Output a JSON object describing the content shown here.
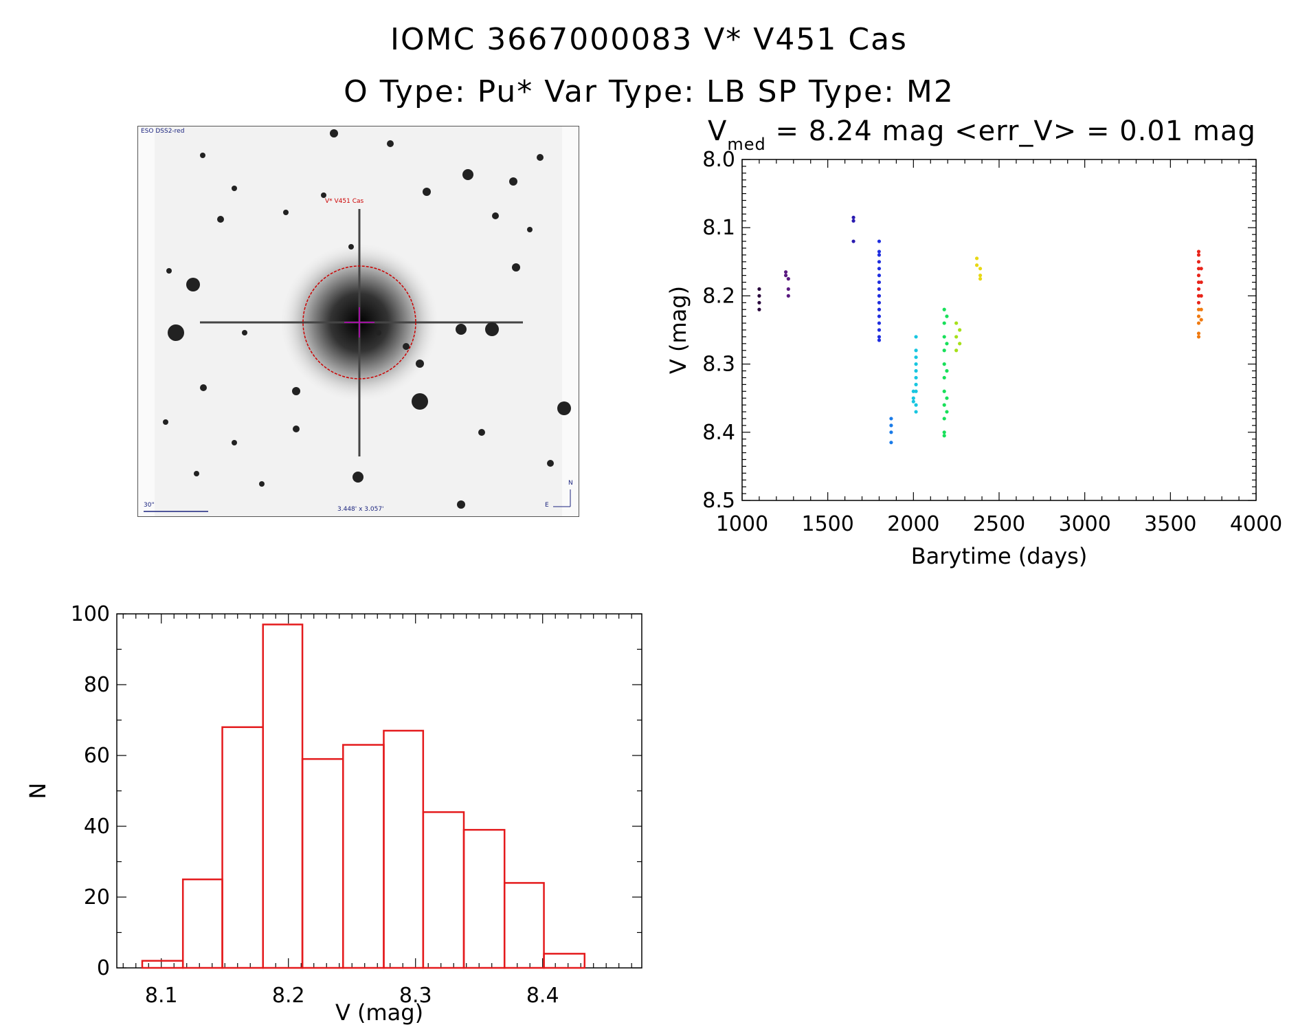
{
  "header": {
    "line1": "IOMC 3667000083   V* V451 Cas",
    "line2": "O Type: Pu*  Var Type: LB  SP Type: M2"
  },
  "sky_image": {
    "survey_label": "ESO DSS2-red",
    "target_label": "V* V451 Cas",
    "scale_label": "30\"",
    "fov_label": "3.448' x 3.057'",
    "compass_n": "N",
    "compass_e": "E"
  },
  "colors": {
    "histogram": "#e41a1c",
    "sky_circle": "#cc0000",
    "sky_label": "#1a237e"
  },
  "chart_data": [
    {
      "type": "scatter",
      "title_main": "V",
      "title_sub": "med",
      "title_rest": " = 8.24 mag <err_V> = 0.01 mag",
      "xlabel": "Barytime (days)",
      "ylabel": "V (mag)",
      "xlim": [
        1000,
        4000
      ],
      "ylim": [
        8.5,
        8.0
      ],
      "xticks": [
        1000,
        1500,
        2000,
        2500,
        3000,
        3500,
        4000
      ],
      "yticks": [
        8.0,
        8.1,
        8.2,
        8.3,
        8.4,
        8.5
      ],
      "xtick_labels": [
        "1000",
        "1500",
        "2000",
        "2500",
        "3000",
        "3500",
        "4000"
      ],
      "ytick_labels": [
        "8.0",
        "8.1",
        "8.2",
        "8.3",
        "8.4",
        "8.5"
      ],
      "series": [
        {
          "color": "#2b0a3d",
          "points": [
            [
              1100,
              8.19
            ],
            [
              1100,
              8.2
            ],
            [
              1100,
              8.21
            ],
            [
              1100,
              8.22
            ]
          ]
        },
        {
          "color": "#5a1a80",
          "points": [
            [
              1255,
              8.165
            ],
            [
              1255,
              8.17
            ],
            [
              1270,
              8.175
            ],
            [
              1270,
              8.19
            ],
            [
              1270,
              8.2
            ]
          ]
        },
        {
          "color": "#2a1bb0",
          "points": [
            [
              1650,
              8.085
            ],
            [
              1650,
              8.09
            ],
            [
              1650,
              8.12
            ]
          ]
        },
        {
          "color": "#1f2ee0",
          "points": [
            [
              1800,
              8.12
            ],
            [
              1800,
              8.135
            ],
            [
              1800,
              8.14
            ],
            [
              1800,
              8.15
            ],
            [
              1800,
              8.16
            ],
            [
              1800,
              8.17
            ],
            [
              1800,
              8.18
            ],
            [
              1800,
              8.19
            ],
            [
              1800,
              8.2
            ],
            [
              1800,
              8.21
            ],
            [
              1800,
              8.22
            ],
            [
              1800,
              8.23
            ],
            [
              1800,
              8.24
            ],
            [
              1800,
              8.25
            ],
            [
              1800,
              8.26
            ],
            [
              1800,
              8.265
            ]
          ]
        },
        {
          "color": "#1a7be8",
          "points": [
            [
              1870,
              8.38
            ],
            [
              1870,
              8.39
            ],
            [
              1870,
              8.4
            ],
            [
              1870,
              8.415
            ]
          ]
        },
        {
          "color": "#18c6e0",
          "points": [
            [
              2000,
              8.34
            ],
            [
              2000,
              8.35
            ],
            [
              2000,
              8.355
            ],
            [
              2015,
              8.26
            ],
            [
              2015,
              8.28
            ],
            [
              2015,
              8.29
            ],
            [
              2015,
              8.3
            ],
            [
              2015,
              8.31
            ],
            [
              2015,
              8.32
            ],
            [
              2015,
              8.33
            ],
            [
              2015,
              8.34
            ],
            [
              2015,
              8.36
            ],
            [
              2015,
              8.37
            ]
          ]
        },
        {
          "color": "#18e05a",
          "points": [
            [
              2180,
              8.22
            ],
            [
              2180,
              8.24
            ],
            [
              2180,
              8.26
            ],
            [
              2180,
              8.28
            ],
            [
              2180,
              8.3
            ],
            [
              2180,
              8.32
            ],
            [
              2180,
              8.34
            ],
            [
              2180,
              8.36
            ],
            [
              2180,
              8.38
            ],
            [
              2180,
              8.4
            ],
            [
              2180,
              8.405
            ],
            [
              2195,
              8.23
            ],
            [
              2195,
              8.27
            ],
            [
              2195,
              8.31
            ],
            [
              2195,
              8.35
            ],
            [
              2195,
              8.37
            ]
          ]
        },
        {
          "color": "#a6e01a",
          "points": [
            [
              2250,
              8.24
            ],
            [
              2250,
              8.26
            ],
            [
              2250,
              8.28
            ],
            [
              2270,
              8.25
            ],
            [
              2270,
              8.27
            ]
          ]
        },
        {
          "color": "#e8d814",
          "points": [
            [
              2370,
              8.145
            ],
            [
              2370,
              8.155
            ],
            [
              2390,
              8.16
            ],
            [
              2390,
              8.17
            ],
            [
              2390,
              8.175
            ]
          ]
        },
        {
          "color": "#e8241a",
          "points": [
            [
              3665,
              8.135
            ],
            [
              3665,
              8.14
            ],
            [
              3665,
              8.15
            ],
            [
              3665,
              8.16
            ],
            [
              3665,
              8.17
            ],
            [
              3665,
              8.18
            ],
            [
              3665,
              8.19
            ],
            [
              3665,
              8.2
            ],
            [
              3665,
              8.21
            ],
            [
              3680,
              8.16
            ],
            [
              3680,
              8.18
            ],
            [
              3680,
              8.2
            ]
          ]
        },
        {
          "color": "#f07a10",
          "points": [
            [
              3665,
              8.22
            ],
            [
              3665,
              8.23
            ],
            [
              3665,
              8.24
            ],
            [
              3665,
              8.255
            ],
            [
              3665,
              8.26
            ],
            [
              3680,
              8.22
            ],
            [
              3680,
              8.235
            ]
          ]
        }
      ]
    },
    {
      "type": "bar",
      "xlabel": "V (mag)",
      "ylabel": "N",
      "xlim": [
        8.065,
        8.478
      ],
      "ylim": [
        0,
        100
      ],
      "xticks": [
        8.1,
        8.2,
        8.3,
        8.4
      ],
      "xtick_labels": [
        "8.1",
        "8.2",
        "8.3",
        "8.4"
      ],
      "yticks": [
        0,
        20,
        40,
        60,
        80,
        100
      ],
      "ytick_labels": [
        "0",
        "20",
        "40",
        "60",
        "80",
        "100"
      ],
      "bin_edges": [
        8.085,
        8.117,
        8.148,
        8.18,
        8.211,
        8.243,
        8.275,
        8.306,
        8.338,
        8.37,
        8.401,
        8.433
      ],
      "values": [
        2,
        25,
        68,
        97,
        59,
        63,
        67,
        44,
        39,
        24,
        4
      ]
    }
  ]
}
